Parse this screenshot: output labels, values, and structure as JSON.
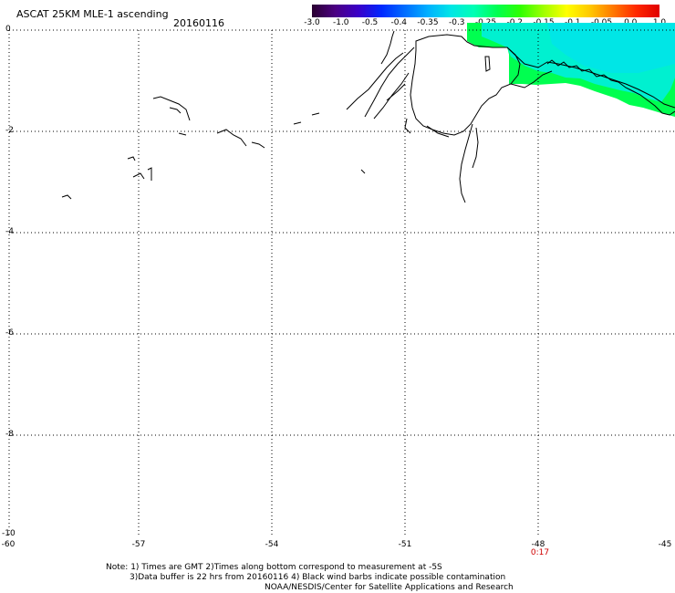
{
  "header": {
    "title": "ASCAT 25KM MLE-1 ascending",
    "date": "20160116"
  },
  "colorbar": {
    "colors": [
      "#2a0030",
      "#4b0082",
      "#3a00c8",
      "#0028ff",
      "#006cff",
      "#00b0ff",
      "#00e6e6",
      "#00ffb4",
      "#00ff50",
      "#30ff00",
      "#a0ff00",
      "#ffff00",
      "#ffc800",
      "#ff7800",
      "#ff2800",
      "#e00000"
    ],
    "ticks": [
      "-3.0",
      "-1.0",
      "-0.5",
      "-0.4",
      "-0.35",
      "-0.3",
      "-0.25",
      "-0.2",
      "-0.15",
      "-0.1",
      "-0.05",
      "0.0",
      "1.0"
    ]
  },
  "axes": {
    "y_labels": [
      "0",
      "-2",
      "-4",
      "-6",
      "-8",
      "-10"
    ],
    "x_labels": [
      "-60",
      "-57",
      "-54",
      "-51",
      "-48",
      "-45"
    ],
    "time_label": "0:17"
  },
  "notes": {
    "line1": "Note: 1) Times are GMT 2)Times along bottom correspond to measurement at -5S",
    "line2": "3)Data buffer is 22 hrs from 20160116 4) Black wind barbs indicate possible contamination",
    "line3": "NOAA/NESDIS/Center for Satellite Applications and Research"
  }
}
